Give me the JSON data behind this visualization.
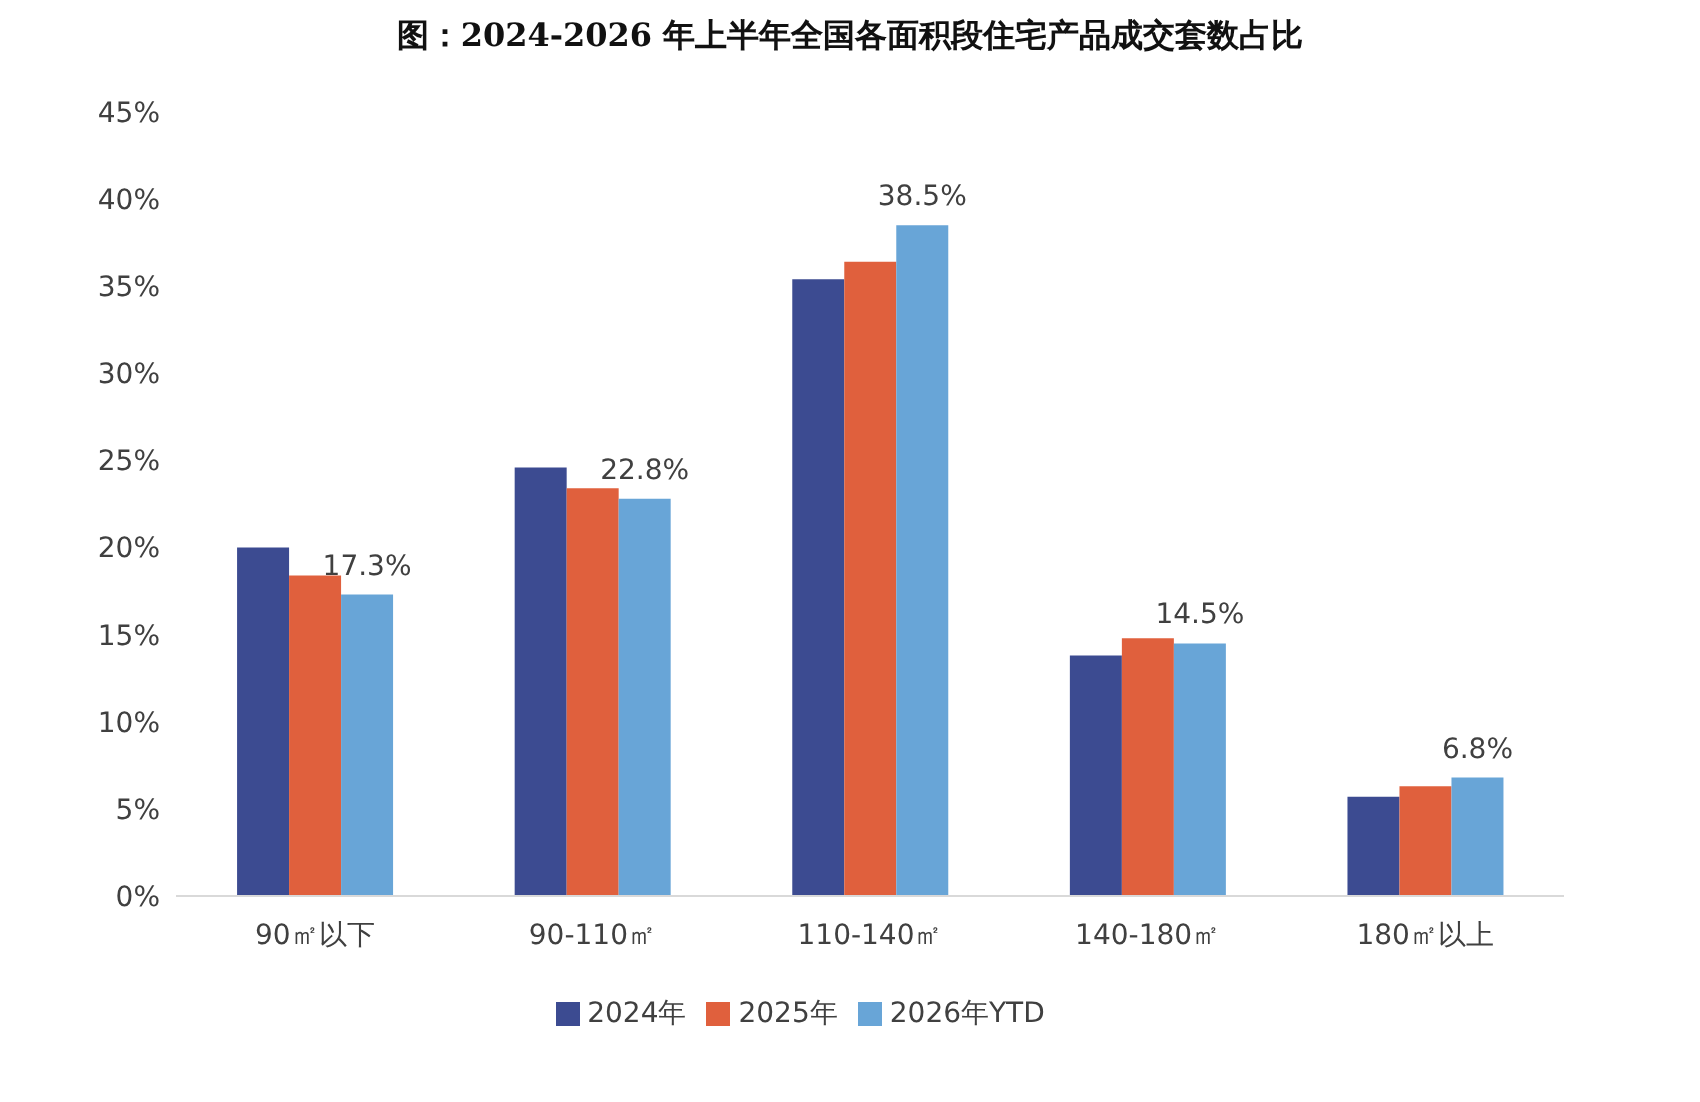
{
  "chart_data": {
    "type": "bar",
    "title": "图：2024-2026 年上半年全国各面积段住宅产品成交套数占比",
    "categories": [
      "90㎡以下",
      "90-110㎡",
      "110-140㎡",
      "140-180㎡",
      "180㎡以上"
    ],
    "series": [
      {
        "name": "2024年",
        "color": "#3c4b91",
        "values": [
          20.0,
          24.6,
          35.4,
          13.8,
          5.7
        ]
      },
      {
        "name": "2025年",
        "color": "#e0603d",
        "values": [
          18.4,
          23.4,
          36.4,
          14.8,
          6.3
        ]
      },
      {
        "name": "2026年YTD",
        "color": "#68a5d7",
        "values": [
          17.3,
          22.8,
          38.5,
          14.5,
          6.8
        ],
        "value_labels": [
          "17.3%",
          "22.8%",
          "38.5%",
          "14.5%",
          "6.8%"
        ]
      }
    ],
    "ylim": [
      0,
      45
    ],
    "yticks": [
      {
        "value": 0,
        "label": "0%"
      },
      {
        "value": 5,
        "label": "5%"
      },
      {
        "value": 10,
        "label": "10%"
      },
      {
        "value": 15,
        "label": "15%"
      },
      {
        "value": 20,
        "label": "20%"
      },
      {
        "value": 25,
        "label": "25%"
      },
      {
        "value": 30,
        "label": "30%"
      },
      {
        "value": 35,
        "label": "35%"
      },
      {
        "value": 40,
        "label": "40%"
      },
      {
        "value": 45,
        "label": "45%"
      }
    ],
    "grid": false,
    "legend": "bottom"
  }
}
